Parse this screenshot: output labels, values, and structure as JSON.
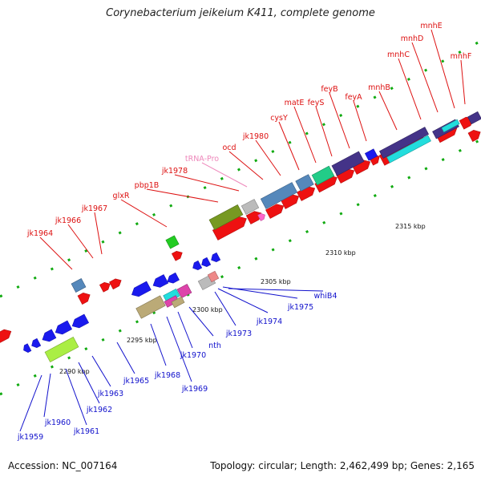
{
  "title": "Corynebacterium jeikeium K411, complete genome",
  "footer": {
    "accession_label": "Accession:",
    "accession": "NC_007164",
    "topology_label": "Topology:",
    "topology": "circular",
    "length_label": "Length:",
    "length": "2,462,499 bp",
    "genes_label": "Genes:",
    "genes": "2,165"
  },
  "scale": {
    "unit": "kbp",
    "ticks": [
      {
        "label": "2290 kbp"
      },
      {
        "label": "2295 kbp"
      },
      {
        "label": "2300 kbp"
      },
      {
        "label": "2305 kbp"
      },
      {
        "label": "2310 kbp"
      },
      {
        "label": "2315 kbp"
      }
    ]
  },
  "colors": {
    "forward_label": "#dd1111",
    "reverse_label": "#1111cc",
    "trna_label": "#ee88bb",
    "forward_gene": "#ee1111",
    "reverse_gene": "#1a1aee",
    "backbone": "#888888",
    "tick_mark": "#11aa11"
  },
  "forward_labels": [
    "jk1964",
    "jk1966",
    "jk1967",
    "glxR",
    "pbp1B",
    "jk1978",
    "tRNA-Pro",
    "ocd",
    "jk1980",
    "cysY",
    "matE",
    "feyS",
    "feyB",
    "feyA",
    "mnhB",
    "mnhC",
    "mnhD",
    "mnhE",
    "mnhF"
  ],
  "reverse_labels": [
    "jk1959",
    "jk1960",
    "jk1961",
    "jk1962",
    "jk1963",
    "jk1965",
    "jk1968",
    "jk1969",
    "jk1970",
    "nth",
    "jk1973",
    "jk1974",
    "jk1975",
    "whiB4"
  ],
  "trna_labels": [
    "tRNA-Pro"
  ]
}
